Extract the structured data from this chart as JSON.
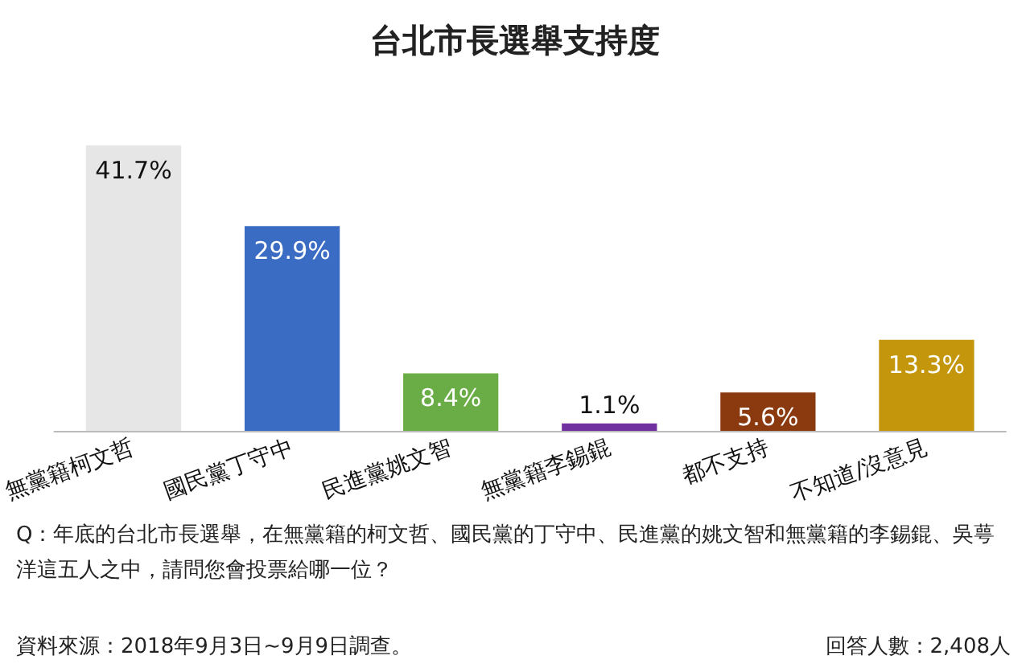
{
  "chart_data": {
    "type": "bar",
    "title": "台北市長選舉支持度",
    "categories": [
      "無黨籍柯文哲",
      "國民黨丁守中",
      "民進黨姚文智",
      "無黨籍李錫錕",
      "都不支持",
      "不知道/沒意見"
    ],
    "values": [
      41.7,
      29.9,
      8.4,
      1.1,
      5.6,
      13.3
    ],
    "value_labels": [
      "41.7%",
      "29.9%",
      "8.4%",
      "1.1%",
      "5.6%",
      "13.3%"
    ],
    "colors": [
      "#e7e6e6",
      "#3b6cc4",
      "#6aac46",
      "#7030a0",
      "#8b3a10",
      "#c4960c"
    ],
    "annotations": [
      "Q：年底的台北市長選舉，在無黨籍的柯文哲、國民黨的丁守中、民進黨的姚文智和無黨籍的李錫錕、吳萼洋這五人之中，請問您會投票給哪一位？",
      "資料來源：2018年9月3日~9月9日調查。",
      "回答人數：2,408人"
    ]
  }
}
